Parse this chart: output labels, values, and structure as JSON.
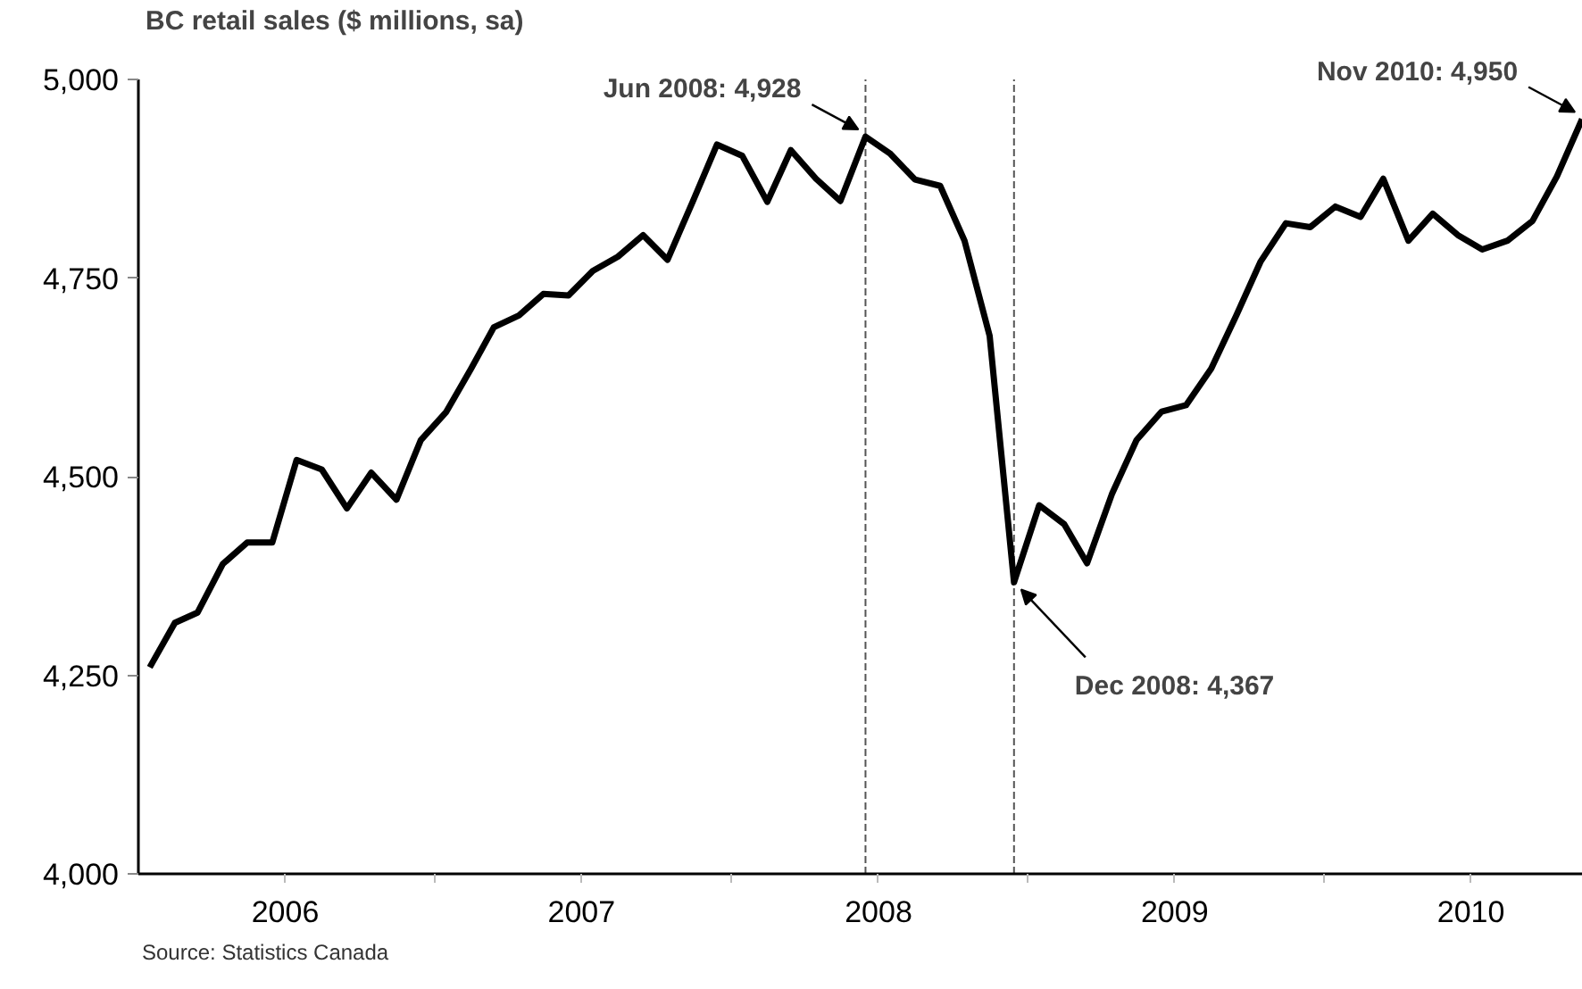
{
  "chart_data": {
    "type": "line",
    "title": "BC retail sales ($ millions, sa)",
    "x": [
      "2006-01-15",
      "2006-02-15",
      "2006-03-15",
      "2006-04-15",
      "2006-05-15",
      "2006-06-15",
      "2006-07-15",
      "2006-08-15",
      "2006-09-15",
      "2006-10-15",
      "2006-11-15",
      "2006-12-15",
      "2007-01-15",
      "2007-02-15",
      "2007-03-15",
      "2007-04-15",
      "2007-05-15",
      "2007-06-15",
      "2007-07-15",
      "2007-08-15",
      "2007-09-15",
      "2007-10-15",
      "2007-11-15",
      "2007-12-15",
      "2008-01-15",
      "2008-02-15",
      "2008-03-15",
      "2008-04-15",
      "2008-05-15",
      "2008-06-15",
      "2008-07-15",
      "2008-08-15",
      "2008-09-15",
      "2008-10-15",
      "2008-11-15",
      "2008-12-15",
      "2009-01-15",
      "2009-02-15",
      "2009-03-15",
      "2009-04-15",
      "2009-05-15",
      "2009-06-15",
      "2009-07-15",
      "2009-08-15",
      "2009-09-15",
      "2009-10-15",
      "2009-11-15",
      "2009-12-15",
      "2010-01-15",
      "2010-02-15",
      "2010-03-15",
      "2010-04-15",
      "2010-05-15",
      "2010-06-15",
      "2010-07-15",
      "2010-08-15",
      "2010-09-15",
      "2010-10-15",
      "2010-11-15"
    ],
    "series": [
      {
        "color": "#000000",
        "values": [
          4260,
          4316,
          4329,
          4390,
          4417,
          4417,
          4521,
          4509,
          4460,
          4505,
          4471,
          4546,
          4581,
          4636,
          4688,
          4703,
          4730,
          4728,
          4759,
          4777,
          4804,
          4773,
          4846,
          4918,
          4904,
          4846,
          4911,
          4875,
          4847,
          4928,
          4907,
          4874,
          4866,
          4797,
          4677,
          4367,
          4464,
          4440,
          4391,
          4479,
          4546,
          4582,
          4590,
          4636,
          4703,
          4771,
          4819,
          4814,
          4840,
          4827,
          4875,
          4797,
          4831,
          4804,
          4786,
          4797,
          4822,
          4878,
          4950
        ]
      }
    ],
    "xlim": [
      "2006-01-01",
      "2010-11-16"
    ],
    "xticks": [
      {
        "value": "2006-07-01",
        "label": "2006"
      },
      {
        "value": "2007-07-01",
        "label": "2007"
      },
      {
        "value": "2008-07-01",
        "label": "2008"
      },
      {
        "value": "2009-07-01",
        "label": "2009"
      },
      {
        "value": "2010-07-01",
        "label": "2010"
      },
      {
        "value": "2007-01-01",
        "label": null
      },
      {
        "value": "2008-01-01",
        "label": null
      },
      {
        "value": "2009-01-01",
        "label": null
      },
      {
        "value": "2010-01-01",
        "label": null
      }
    ],
    "ylim": [
      4000,
      5000
    ],
    "yticks": [
      {
        "value": 4000,
        "label": "4,000"
      },
      {
        "value": 4250,
        "label": "4,250"
      },
      {
        "value": 4500,
        "label": "4,500"
      },
      {
        "value": 4750,
        "label": "4,750"
      },
      {
        "value": 5000,
        "label": "5,000"
      }
    ],
    "ref_lines": [
      {
        "axis": "x",
        "value": "2008-06-15",
        "color": "#555555",
        "line_style": "dashed"
      },
      {
        "axis": "x",
        "value": "2008-12-15",
        "color": "#555555",
        "line_style": "dashed"
      }
    ],
    "annotations": [
      {
        "text": "Jun 2008: 4,928",
        "x": "2008-06-15",
        "y": 4928
      },
      {
        "text": "Dec 2008: 4,367",
        "x": "2008-12-15",
        "y": 4367
      },
      {
        "text": "Nov 2010: 4,950",
        "x": "2010-11-15",
        "y": 4950
      },
      "Source: Statistics Canada"
    ],
    "grid": false,
    "marker": "none",
    "line_style": "solid"
  }
}
